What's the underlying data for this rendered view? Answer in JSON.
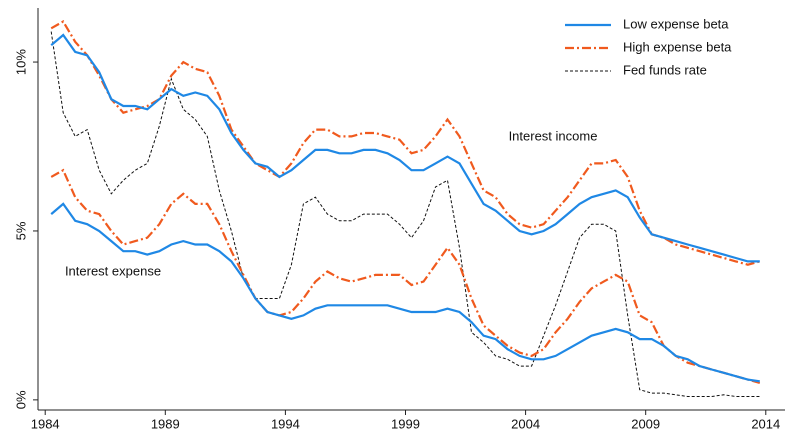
{
  "chart_data": {
    "type": "line",
    "annotations": [
      "Interest income",
      "Interest expense"
    ],
    "x": [
      1984.25,
      1984.75,
      1985.25,
      1985.75,
      1986.25,
      1986.75,
      1987.25,
      1987.75,
      1988.25,
      1988.75,
      1989.25,
      1989.75,
      1990.25,
      1990.75,
      1991.25,
      1991.75,
      1992.25,
      1992.75,
      1993.25,
      1993.75,
      1994.25,
      1994.75,
      1995.25,
      1995.75,
      1996.25,
      1996.75,
      1997.25,
      1997.75,
      1998.25,
      1998.75,
      1999.25,
      1999.75,
      2000.25,
      2000.75,
      2001.25,
      2001.75,
      2002.25,
      2002.75,
      2003.25,
      2003.75,
      2004.25,
      2004.75,
      2005.25,
      2005.75,
      2006.25,
      2006.75,
      2007.25,
      2007.75,
      2008.25,
      2008.75,
      2009.25,
      2009.75,
      2010.25,
      2010.75,
      2011.25,
      2011.75,
      2012.25,
      2012.75,
      2013.25,
      2013.75
    ],
    "series": [
      {
        "name": "Low expense beta",
        "color": "#1f88e5",
        "dash": "solid",
        "income": [
          10.5,
          10.8,
          10.3,
          10.2,
          9.7,
          8.9,
          8.7,
          8.7,
          8.6,
          8.9,
          9.2,
          9.0,
          9.1,
          9.0,
          8.6,
          7.9,
          7.4,
          7.0,
          6.9,
          6.6,
          6.8,
          7.1,
          7.4,
          7.4,
          7.3,
          7.3,
          7.4,
          7.4,
          7.3,
          7.1,
          6.8,
          6.8,
          7.0,
          7.2,
          7.0,
          6.4,
          5.8,
          5.6,
          5.3,
          5.0,
          4.9,
          5.0,
          5.2,
          5.5,
          5.8,
          6.0,
          6.1,
          6.2,
          6.0,
          5.4,
          4.9,
          4.8,
          4.7,
          4.6,
          4.5,
          4.4,
          4.3,
          4.2,
          4.1,
          4.1
        ],
        "expense": [
          5.5,
          5.8,
          5.3,
          5.2,
          5.0,
          4.7,
          4.4,
          4.4,
          4.3,
          4.4,
          4.6,
          4.7,
          4.6,
          4.6,
          4.4,
          4.1,
          3.6,
          3.0,
          2.6,
          2.5,
          2.4,
          2.5,
          2.7,
          2.8,
          2.8,
          2.8,
          2.8,
          2.8,
          2.8,
          2.7,
          2.6,
          2.6,
          2.6,
          2.7,
          2.6,
          2.3,
          1.9,
          1.8,
          1.5,
          1.3,
          1.2,
          1.2,
          1.3,
          1.5,
          1.7,
          1.9,
          2.0,
          2.1,
          2.0,
          1.8,
          1.8,
          1.6,
          1.3,
          1.2,
          1.0,
          0.9,
          0.8,
          0.7,
          0.6,
          0.55
        ]
      },
      {
        "name": "High expense beta",
        "color": "#f05a1e",
        "dash": "dashdot",
        "income": [
          11.0,
          11.2,
          10.6,
          10.2,
          9.6,
          8.9,
          8.5,
          8.6,
          8.7,
          8.9,
          9.6,
          10.0,
          9.8,
          9.7,
          9.0,
          8.0,
          7.5,
          7.0,
          6.8,
          6.6,
          7.0,
          7.6,
          8.0,
          8.0,
          7.8,
          7.8,
          7.9,
          7.9,
          7.8,
          7.7,
          7.3,
          7.4,
          7.8,
          8.3,
          7.8,
          7.0,
          6.2,
          6.0,
          5.5,
          5.2,
          5.1,
          5.2,
          5.6,
          6.0,
          6.5,
          7.0,
          7.0,
          7.1,
          6.6,
          5.6,
          4.9,
          4.8,
          4.6,
          4.5,
          4.4,
          4.3,
          4.2,
          4.1,
          4.0,
          4.1
        ],
        "expense": [
          6.6,
          6.8,
          6.0,
          5.6,
          5.5,
          5.0,
          4.6,
          4.7,
          4.8,
          5.2,
          5.8,
          6.1,
          5.8,
          5.8,
          5.2,
          4.4,
          3.7,
          3.0,
          2.6,
          2.5,
          2.6,
          3.0,
          3.5,
          3.8,
          3.6,
          3.5,
          3.6,
          3.7,
          3.7,
          3.7,
          3.4,
          3.5,
          4.0,
          4.5,
          4.0,
          3.0,
          2.2,
          1.9,
          1.6,
          1.4,
          1.3,
          1.5,
          2.0,
          2.4,
          2.9,
          3.3,
          3.5,
          3.7,
          3.5,
          2.5,
          2.3,
          1.6,
          1.3,
          1.1,
          1.0,
          0.9,
          0.8,
          0.7,
          0.6,
          0.5
        ]
      },
      {
        "name": "Fed funds rate",
        "color": "#111111",
        "dash": "dashed",
        "values": [
          10.9,
          8.5,
          7.8,
          8.0,
          6.8,
          6.1,
          6.5,
          6.8,
          7.0,
          8.1,
          9.5,
          8.6,
          8.3,
          7.8,
          6.2,
          5.0,
          3.6,
          3.0,
          3.0,
          3.0,
          4.0,
          5.8,
          6.0,
          5.5,
          5.3,
          5.3,
          5.5,
          5.5,
          5.5,
          5.2,
          4.8,
          5.3,
          6.3,
          6.5,
          4.5,
          2.0,
          1.7,
          1.3,
          1.2,
          1.0,
          1.0,
          1.9,
          2.8,
          3.8,
          4.8,
          5.2,
          5.2,
          5.0,
          2.5,
          0.3,
          0.2,
          0.2,
          0.15,
          0.1,
          0.1,
          0.1,
          0.15,
          0.1,
          0.1,
          0.1
        ]
      }
    ],
    "xlim": [
      1983.7,
      2014.8
    ],
    "xticks": [
      1984,
      1989,
      1994,
      1999,
      2004,
      2009,
      2014
    ],
    "ylim": [
      -0.3,
      11.6
    ],
    "yticks": [
      {
        "value": 0,
        "label": "0%"
      },
      {
        "value": 5,
        "label": "5%"
      },
      {
        "value": 10,
        "label": "10%"
      }
    ],
    "legend": "top-right"
  }
}
